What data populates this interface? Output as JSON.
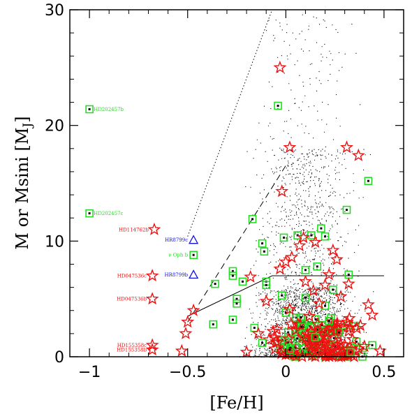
{
  "chart_data": {
    "type": "scatter",
    "xlabel": "[Fe/H]",
    "ylabel": "M or Msini [M_J]",
    "ylabel_parts": {
      "main": "M or Msini [M",
      "sub": "J",
      "close": "]"
    },
    "xlim": [
      -1.1,
      0.6
    ],
    "ylim": [
      0,
      30
    ],
    "xticks": [
      -1,
      -0.5,
      0,
      0.5
    ],
    "xtick_labels": [
      "−1",
      "−0.5",
      "0",
      "0.5"
    ],
    "yticks": [
      0,
      10,
      20,
      30
    ],
    "ytick_labels": [
      "0",
      "10",
      "20",
      "30"
    ],
    "colors": {
      "green": "#22dd22",
      "red": "#ee1111",
      "blue": "#1111dd",
      "black": "#000000"
    },
    "lines": {
      "dotted": [
        [
          -0.5,
          10.4
        ],
        [
          -0.07,
          30
        ]
      ],
      "dashed": [
        [
          -0.5,
          3.0
        ],
        [
          0.01,
          16.8
        ]
      ],
      "solid": [
        [
          -0.5,
          3.5
        ],
        [
          -0.07,
          7.0
        ],
        [
          0.5,
          7.0
        ]
      ]
    },
    "green_squares": [
      [
        -1.0,
        21.4
      ],
      [
        -1.0,
        12.4
      ],
      [
        -0.47,
        8.8
      ],
      [
        -0.36,
        6.3
      ],
      [
        -0.27,
        7.4
      ],
      [
        -0.27,
        7.0
      ],
      [
        -0.25,
        5.0
      ],
      [
        -0.25,
        4.6
      ],
      [
        -0.22,
        6.5
      ],
      [
        -0.17,
        11.9
      ],
      [
        -0.12,
        9.8
      ],
      [
        -0.11,
        9.1
      ],
      [
        -0.1,
        6.5
      ],
      [
        -0.1,
        6.2
      ],
      [
        -0.02,
        5.3
      ],
      [
        -0.01,
        10.3
      ],
      [
        -0.04,
        21.7
      ],
      [
        0.06,
        10.5
      ],
      [
        0.1,
        7.5
      ],
      [
        0.13,
        10.5
      ],
      [
        0.16,
        7.8
      ],
      [
        0.18,
        11.1
      ],
      [
        0.2,
        10.4
      ],
      [
        0.24,
        5.8
      ],
      [
        0.31,
        12.7
      ],
      [
        0.32,
        7.1
      ],
      [
        0.42,
        15.2
      ],
      [
        -0.37,
        2.8
      ],
      [
        -0.27,
        3.2
      ],
      [
        -0.16,
        2.5
      ],
      [
        0.0,
        3.8
      ],
      [
        0.08,
        2.6
      ],
      [
        0.2,
        4.4
      ],
      [
        0.27,
        2.1
      ],
      [
        0.36,
        1.3
      ],
      [
        0.44,
        1.0
      ],
      [
        -0.12,
        1.2
      ],
      [
        0.02,
        0.6
      ],
      [
        0.15,
        1.7
      ],
      [
        0.33,
        0.4
      ],
      [
        0.22,
        3.1
      ],
      [
        0.1,
        5.1
      ]
    ],
    "red_stars": [
      [
        -0.67,
        11.0
      ],
      [
        -0.68,
        7.0
      ],
      [
        -0.68,
        5.0
      ],
      [
        -0.68,
        1.0
      ],
      [
        -0.68,
        0.6
      ],
      [
        -0.03,
        25.0
      ],
      [
        0.02,
        18.1
      ],
      [
        0.31,
        18.1
      ],
      [
        0.37,
        17.4
      ],
      [
        -0.02,
        14.3
      ],
      [
        -0.5,
        3.0
      ],
      [
        -0.51,
        2.0
      ],
      [
        -0.47,
        4.0
      ],
      [
        -0.53,
        0.5
      ],
      [
        -0.18,
        6.9
      ],
      [
        -0.03,
        7.6
      ],
      [
        0.0,
        8.2
      ],
      [
        0.03,
        8.6
      ],
      [
        0.07,
        9.6
      ],
      [
        0.09,
        10.3
      ],
      [
        0.15,
        9.9
      ],
      [
        0.24,
        9.2
      ],
      [
        0.26,
        8.4
      ],
      [
        0.22,
        7.1
      ],
      [
        0.1,
        6.5
      ],
      [
        0.2,
        6.2
      ],
      [
        0.32,
        6.3
      ],
      [
        0.42,
        4.5
      ],
      [
        0.44,
        3.6
      ],
      [
        0.48,
        0.5
      ],
      [
        -0.2,
        0.4
      ],
      [
        -0.05,
        1.3
      ],
      [
        0.05,
        2.3
      ],
      [
        0.12,
        3.5
      ],
      [
        0.17,
        4.6
      ],
      [
        0.25,
        2.2
      ],
      [
        0.34,
        1.5
      ],
      [
        0.38,
        2.7
      ],
      [
        -0.1,
        4.8
      ],
      [
        0.02,
        4.1
      ],
      [
        0.28,
        5.2
      ],
      [
        -0.14,
        2.0
      ],
      [
        0.4,
        0.9
      ],
      [
        0.14,
        5.7
      ]
    ],
    "blue_triangles": [
      [
        -0.47,
        10.1
      ],
      [
        -0.47,
        7.1
      ]
    ],
    "dense_cluster": {
      "green_count": 70,
      "red_count": 90,
      "x_center": 0.17,
      "x_spread": 0.15,
      "y_max": 3.4
    },
    "background_points": {
      "count": 9000,
      "x_center": 0.1,
      "x_spread": 0.17,
      "y_max": 30
    },
    "labels": [
      {
        "text": "HD202457b",
        "x": -1.0,
        "y": 21.4,
        "color": "green"
      },
      {
        "text": "HD202457c",
        "x": -1.0,
        "y": 12.4,
        "color": "green"
      },
      {
        "text": "HD114762b",
        "x": -0.67,
        "y": 11.0,
        "color": "red"
      },
      {
        "text": "HR8799c",
        "x": -0.47,
        "y": 10.1,
        "color": "blue"
      },
      {
        "text": "ν Oph b",
        "x": -0.47,
        "y": 8.8,
        "color": "green"
      },
      {
        "text": "HR8799b",
        "x": -0.47,
        "y": 7.1,
        "color": "blue"
      },
      {
        "text": "HD047536c",
        "x": -0.68,
        "y": 7.0,
        "color": "red"
      },
      {
        "text": "HD047536b",
        "x": -0.68,
        "y": 5.0,
        "color": "red"
      },
      {
        "text": "HD155358c",
        "x": -0.68,
        "y": 1.0,
        "color": "red"
      },
      {
        "text": "HD155358b",
        "x": -0.68,
        "y": 0.6,
        "color": "red"
      }
    ]
  }
}
